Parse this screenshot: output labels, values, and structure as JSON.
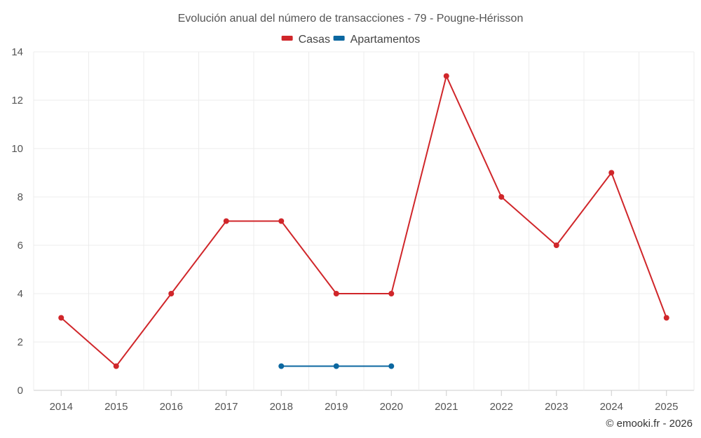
{
  "chart_data": {
    "type": "line",
    "title": "Evolución anual del número de transacciones - 79 - Pougne-Hérisson",
    "categories": [
      "2014",
      "2015",
      "2016",
      "2017",
      "2018",
      "2019",
      "2020",
      "2021",
      "2022",
      "2023",
      "2024",
      "2025"
    ],
    "series": [
      {
        "name": "Casas",
        "color": "#d0262a",
        "values": [
          3,
          1,
          4,
          7,
          7,
          4,
          4,
          13,
          8,
          6,
          9,
          3
        ]
      },
      {
        "name": "Apartamentos",
        "color": "#0b67a0",
        "values": [
          null,
          null,
          null,
          null,
          1,
          1,
          1,
          null,
          null,
          null,
          null,
          null
        ]
      }
    ],
    "ylim": [
      0,
      14
    ],
    "yticks": [
      0,
      2,
      4,
      6,
      8,
      10,
      12,
      14
    ],
    "xlabel": "",
    "ylabel": "",
    "grid": true,
    "legend_position": "top-center"
  },
  "credit": "© emooki.fr - 2026"
}
